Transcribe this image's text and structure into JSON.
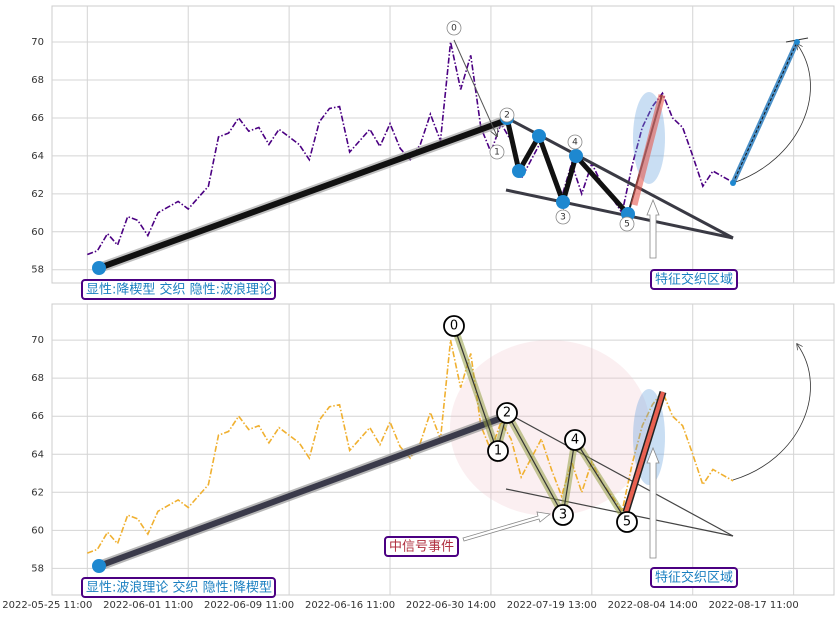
{
  "chart_data": [
    {
      "type": "line",
      "color": "#4b0082",
      "values": [
        58.8,
        59.0,
        59.9,
        59.3,
        60.8,
        60.6,
        59.8,
        61.0,
        61.3,
        61.6,
        61.2,
        61.8,
        62.4,
        65.0,
        65.2,
        66.0,
        65.3,
        65.5,
        64.6,
        65.4,
        65.0,
        64.6,
        63.8,
        65.8,
        66.5,
        66.6,
        64.2,
        64.8,
        65.4,
        64.5,
        65.7,
        64.4,
        63.8,
        64.6,
        66.2,
        64.8,
        70.0,
        67.5,
        69.3,
        65.5,
        64.2,
        65.7,
        64.8,
        62.8,
        63.8,
        64.8,
        63.2,
        61.8,
        63.6,
        62.0,
        63.6,
        62.5,
        61.8,
        61.0,
        63.5,
        65.5,
        66.6,
        67.3,
        66.0,
        65.5,
        64.0,
        62.4,
        63.2,
        62.9,
        62.6
      ],
      "ylim": [
        57.3,
        71.9
      ],
      "yticks": [
        58,
        60,
        62,
        64,
        66,
        68,
        70
      ],
      "grid": true,
      "wave_labels": [
        "0",
        "1",
        "2",
        "3",
        "4",
        "5"
      ],
      "annotations": [
        "显性:降楔型 交织 隐性:波浪理论",
        "特征交织区域"
      ]
    },
    {
      "type": "line",
      "color": "#f0b030",
      "values": [
        58.8,
        59.0,
        59.9,
        59.3,
        60.8,
        60.6,
        59.8,
        61.0,
        61.3,
        61.6,
        61.2,
        61.8,
        62.4,
        65.0,
        65.2,
        66.0,
        65.3,
        65.5,
        64.6,
        65.4,
        65.0,
        64.6,
        63.8,
        65.8,
        66.5,
        66.6,
        64.2,
        64.8,
        65.4,
        64.5,
        65.7,
        64.4,
        63.8,
        64.6,
        66.2,
        64.8,
        70.0,
        67.5,
        69.3,
        65.5,
        64.2,
        65.7,
        64.8,
        62.8,
        63.8,
        64.8,
        63.2,
        61.8,
        63.6,
        62.0,
        63.6,
        62.5,
        61.8,
        61.0,
        63.5,
        65.5,
        66.6,
        67.3,
        66.0,
        65.5,
        64.0,
        62.4,
        63.2,
        62.9,
        62.6
      ],
      "ylim": [
        56.6,
        71.9
      ],
      "yticks": [
        58,
        60,
        62,
        64,
        66,
        68,
        70
      ],
      "grid": true,
      "xlim": [
        -3.5,
        74
      ],
      "xticks": [
        {
          "value": 0,
          "label": "2022-05-25 11:00"
        },
        {
          "value": 10,
          "label": "2022-06-01 11:00"
        },
        {
          "value": 20,
          "label": "2022-06-09 11:00"
        },
        {
          "value": 30,
          "label": "2022-06-16 11:00"
        },
        {
          "value": 40,
          "label": "2022-06-30 14:00"
        },
        {
          "value": 50,
          "label": "2022-07-19 13:00"
        },
        {
          "value": 60,
          "label": "2022-08-04 14:00"
        },
        {
          "value": 70,
          "label": "2022-08-17 11:00"
        }
      ],
      "wave_labels": [
        "0",
        "1",
        "2",
        "3",
        "4",
        "5"
      ],
      "annotations": [
        "显性:波浪理论 交织 隐性:降楔型",
        "特征交织区域",
        "中信号事件"
      ]
    }
  ]
}
